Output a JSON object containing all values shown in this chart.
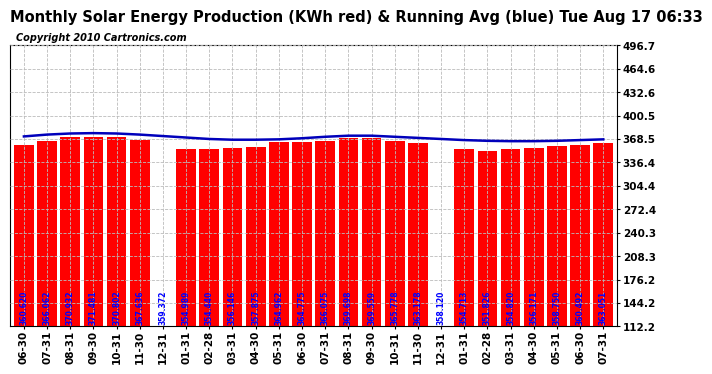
{
  "title": "Monthly Solar Energy Production (KWh red) & Running Avg (blue) Tue Aug 17 06:33",
  "copyright": "Copyright 2010 Cartronics.com",
  "categories": [
    "06-30",
    "07-31",
    "08-31",
    "09-30",
    "10-31",
    "11-30",
    "12-31",
    "01-31",
    "02-28",
    "03-31",
    "04-30",
    "05-31",
    "06-30",
    "07-31",
    "08-31",
    "09-30",
    "10-31",
    "11-30",
    "12-31",
    "01-31",
    "02-28",
    "03-31",
    "04-30",
    "05-31",
    "06-30",
    "07-31"
  ],
  "bar_values": [
    360.62,
    366.062,
    370.932,
    371.481,
    370.802,
    367.636,
    359.372,
    354.989,
    354.44,
    356.146,
    357.875,
    364.962,
    364.775,
    366.075,
    369.698,
    369.559,
    365.778,
    363.178,
    358.12,
    354.713,
    351.826,
    354.82,
    356.171,
    358.75,
    360.492,
    363.051
  ],
  "running_avg": [
    372.0,
    374.5,
    376.0,
    376.5,
    376.0,
    374.5,
    372.5,
    370.5,
    368.5,
    367.5,
    367.5,
    368.0,
    369.5,
    371.5,
    373.0,
    373.0,
    371.5,
    370.0,
    368.5,
    367.0,
    366.0,
    365.5,
    365.5,
    366.0,
    367.0,
    368.0
  ],
  "bar_color": "#FF0000",
  "line_color": "#0000BB",
  "text_color_on_bar": "#0000FF",
  "background_color": "#FFFFFF",
  "plot_bg_color": "#FFFFFF",
  "ylim_min": 112.2,
  "ylim_max": 496.7,
  "yticks": [
    112.2,
    144.2,
    176.2,
    208.3,
    240.3,
    272.4,
    304.4,
    336.4,
    368.5,
    400.5,
    432.6,
    464.6,
    496.7
  ],
  "grid_color": "#BBBBBB",
  "title_fontsize": 10.5,
  "copyright_fontsize": 7,
  "bar_label_fontsize": 5.5,
  "tick_fontsize": 7.5,
  "special_bars": {
    "6": {
      "color": "#FFFFFF",
      "text_color": "#0000FF"
    },
    "19": {
      "color": "#FFFFFF",
      "text_color": "#0000FF"
    }
  }
}
